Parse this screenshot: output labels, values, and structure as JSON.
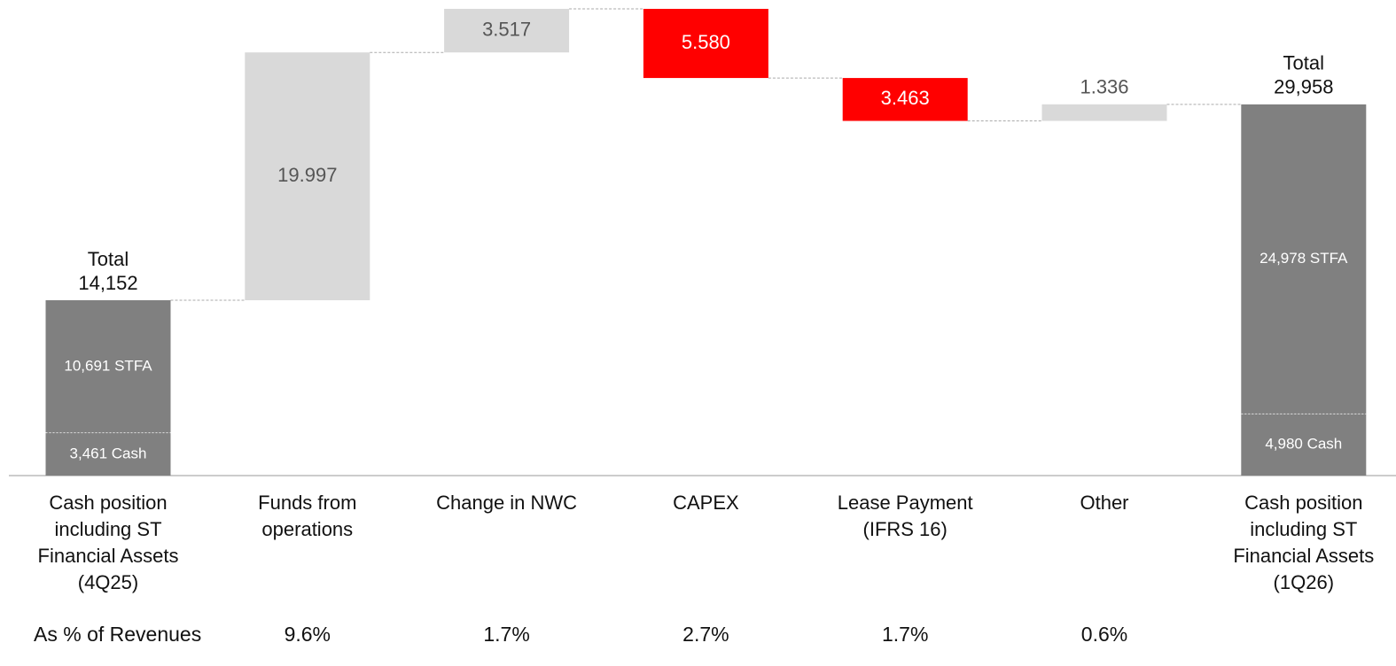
{
  "chart_data": {
    "type": "waterfall",
    "categories": [
      "Cash position\nincluding ST\nFinancial Assets\n(4Q25)",
      "Funds from\noperations",
      "Change in NWC",
      "CAPEX",
      "Lease Payment\n(IFRS 16)",
      "Other",
      "Cash position\nincluding ST\nFinancial Assets\n(1Q26)"
    ],
    "start_total": {
      "label": "Total",
      "value": 14152,
      "value_label": "14,152",
      "parts": [
        {
          "value": 3461,
          "label": "3,461 Cash"
        },
        {
          "value": 10691,
          "label": "10,691 STFA"
        }
      ]
    },
    "steps": {
      "values": [
        19997,
        3517,
        -5580,
        -3463,
        1336
      ],
      "value_labels": [
        "19.997",
        "3.517",
        "5.580",
        "3.463",
        "1.336"
      ]
    },
    "end_total": {
      "label": "Total",
      "value": 29958,
      "value_label": "29,958",
      "parts": [
        {
          "value": 4980,
          "label": "4,980 Cash"
        },
        {
          "value": 24978,
          "label": "24,978 STFA"
        }
      ]
    },
    "colors": {
      "total": "#808080",
      "increase": "#d9d9d9",
      "decrease": "#ff0000"
    },
    "revenue_share": {
      "label": "As % of Revenues",
      "values": [
        9.6,
        1.7,
        2.7,
        1.7,
        0.6
      ],
      "value_labels": [
        "9.6%",
        "1.7%",
        "2.7%",
        "1.7%",
        "0.6%"
      ]
    }
  }
}
